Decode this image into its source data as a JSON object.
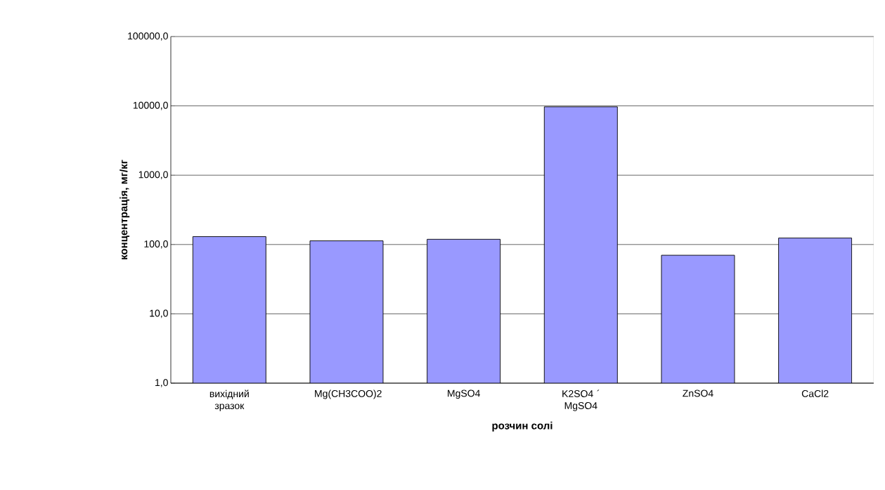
{
  "chart_data": {
    "type": "bar",
    "xlabel": "розчин солі",
    "ylabel": "концентрація, мг/кг",
    "categories": [
      "вихідний зразок",
      "Mg(CH3COO)2",
      "MgSO4",
      "K2SO4 ´ MgSO4",
      "ZnSO4",
      "CaCl2"
    ],
    "values": [
      130,
      113,
      119,
      9700,
      70,
      124
    ],
    "color": "#9999ff",
    "log": "y",
    "ylim": [
      1,
      100000
    ],
    "yticks": [
      {
        "value": 1,
        "label": "1,0"
      },
      {
        "value": 10,
        "label": "10,0"
      },
      {
        "value": 100,
        "label": "100,0"
      },
      {
        "value": 1000,
        "label": "1000,0"
      },
      {
        "value": 10000,
        "label": "10000,0"
      },
      {
        "value": 100000,
        "label": "100000,0"
      }
    ],
    "grid": "y"
  }
}
